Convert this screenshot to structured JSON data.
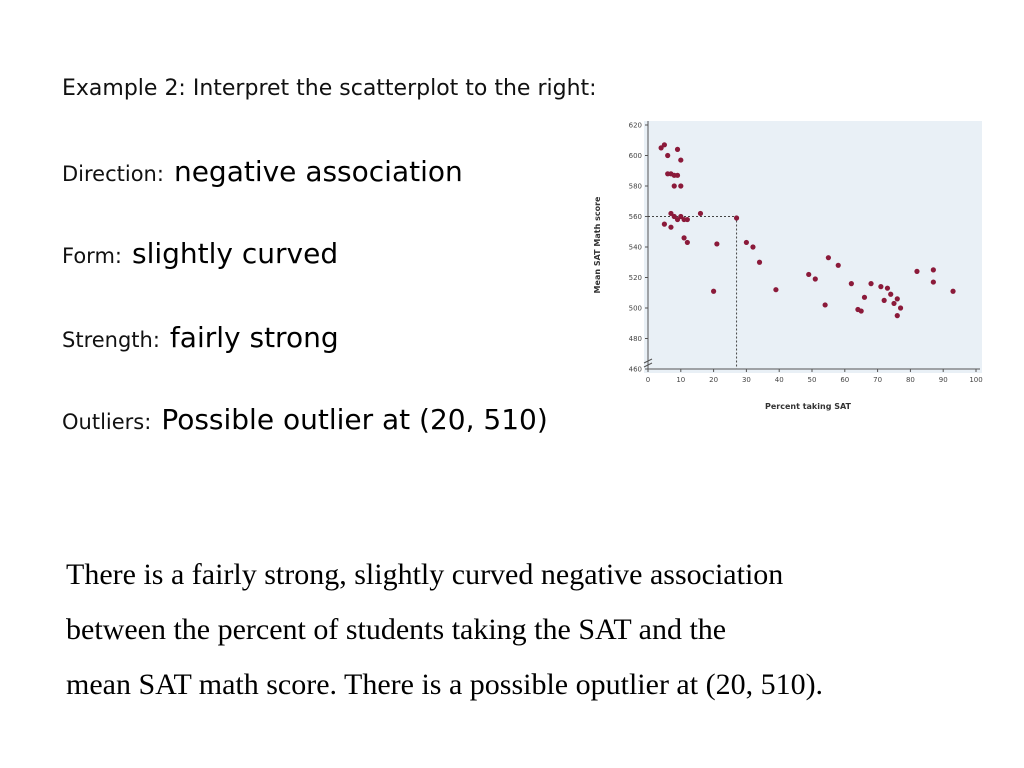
{
  "heading": "Example 2: Interpret the scatterplot to the right:",
  "items": [
    {
      "label": "Direction:",
      "answer": "negative association"
    },
    {
      "label": "Form:",
      "answer": "slightly curved"
    },
    {
      "label": "Strength:",
      "answer": "fairly strong"
    },
    {
      "label": "Outliers:",
      "answer": "Possible outlier at (20, 510)"
    }
  ],
  "summary": {
    "line1": "There is a fairly strong, slightly curved negative association",
    "line2": "between the percent of students taking the SAT and the",
    "line3": "mean SAT math score.  There is a possible oputlier at (20, 510)."
  },
  "colors": {
    "point": "#8b1a3a",
    "plot_bg": "#e9f0f6",
    "axis": "#555555"
  },
  "chart_data": {
    "type": "scatter",
    "xlabel": "Percent taking SAT",
    "ylabel": "Mean SAT Math score",
    "xlim": [
      0,
      100
    ],
    "ylim": [
      460,
      620
    ],
    "xticks": [
      0,
      10,
      20,
      30,
      40,
      50,
      60,
      70,
      80,
      90,
      100
    ],
    "yticks": [
      460,
      480,
      500,
      520,
      540,
      560,
      580,
      600,
      620
    ],
    "grid": false,
    "reference_lines": [
      {
        "x": 27,
        "y": 560
      }
    ],
    "points": [
      [
        4,
        605
      ],
      [
        5,
        607
      ],
      [
        6,
        600
      ],
      [
        9,
        604
      ],
      [
        10,
        597
      ],
      [
        6,
        588
      ],
      [
        7,
        588
      ],
      [
        8,
        587
      ],
      [
        9,
        587
      ],
      [
        10,
        580
      ],
      [
        8,
        580
      ],
      [
        5,
        555
      ],
      [
        7,
        553
      ],
      [
        7,
        562
      ],
      [
        8,
        560
      ],
      [
        9,
        558
      ],
      [
        10,
        560
      ],
      [
        11,
        558
      ],
      [
        12,
        558
      ],
      [
        16,
        562
      ],
      [
        12,
        543
      ],
      [
        11,
        546
      ],
      [
        21,
        542
      ],
      [
        20,
        511
      ],
      [
        27,
        559
      ],
      [
        30,
        543
      ],
      [
        32,
        540
      ],
      [
        34,
        530
      ],
      [
        39,
        512
      ],
      [
        49,
        522
      ],
      [
        51,
        519
      ],
      [
        55,
        533
      ],
      [
        54,
        502
      ],
      [
        58,
        528
      ],
      [
        62,
        516
      ],
      [
        64,
        499
      ],
      [
        65,
        498
      ],
      [
        66,
        507
      ],
      [
        68,
        516
      ],
      [
        71,
        514
      ],
      [
        73,
        513
      ],
      [
        72,
        505
      ],
      [
        74,
        509
      ],
      [
        75,
        503
      ],
      [
        76,
        506
      ],
      [
        77,
        500
      ],
      [
        76,
        495
      ],
      [
        82,
        524
      ],
      [
        87,
        525
      ],
      [
        87,
        517
      ],
      [
        93,
        511
      ]
    ]
  }
}
